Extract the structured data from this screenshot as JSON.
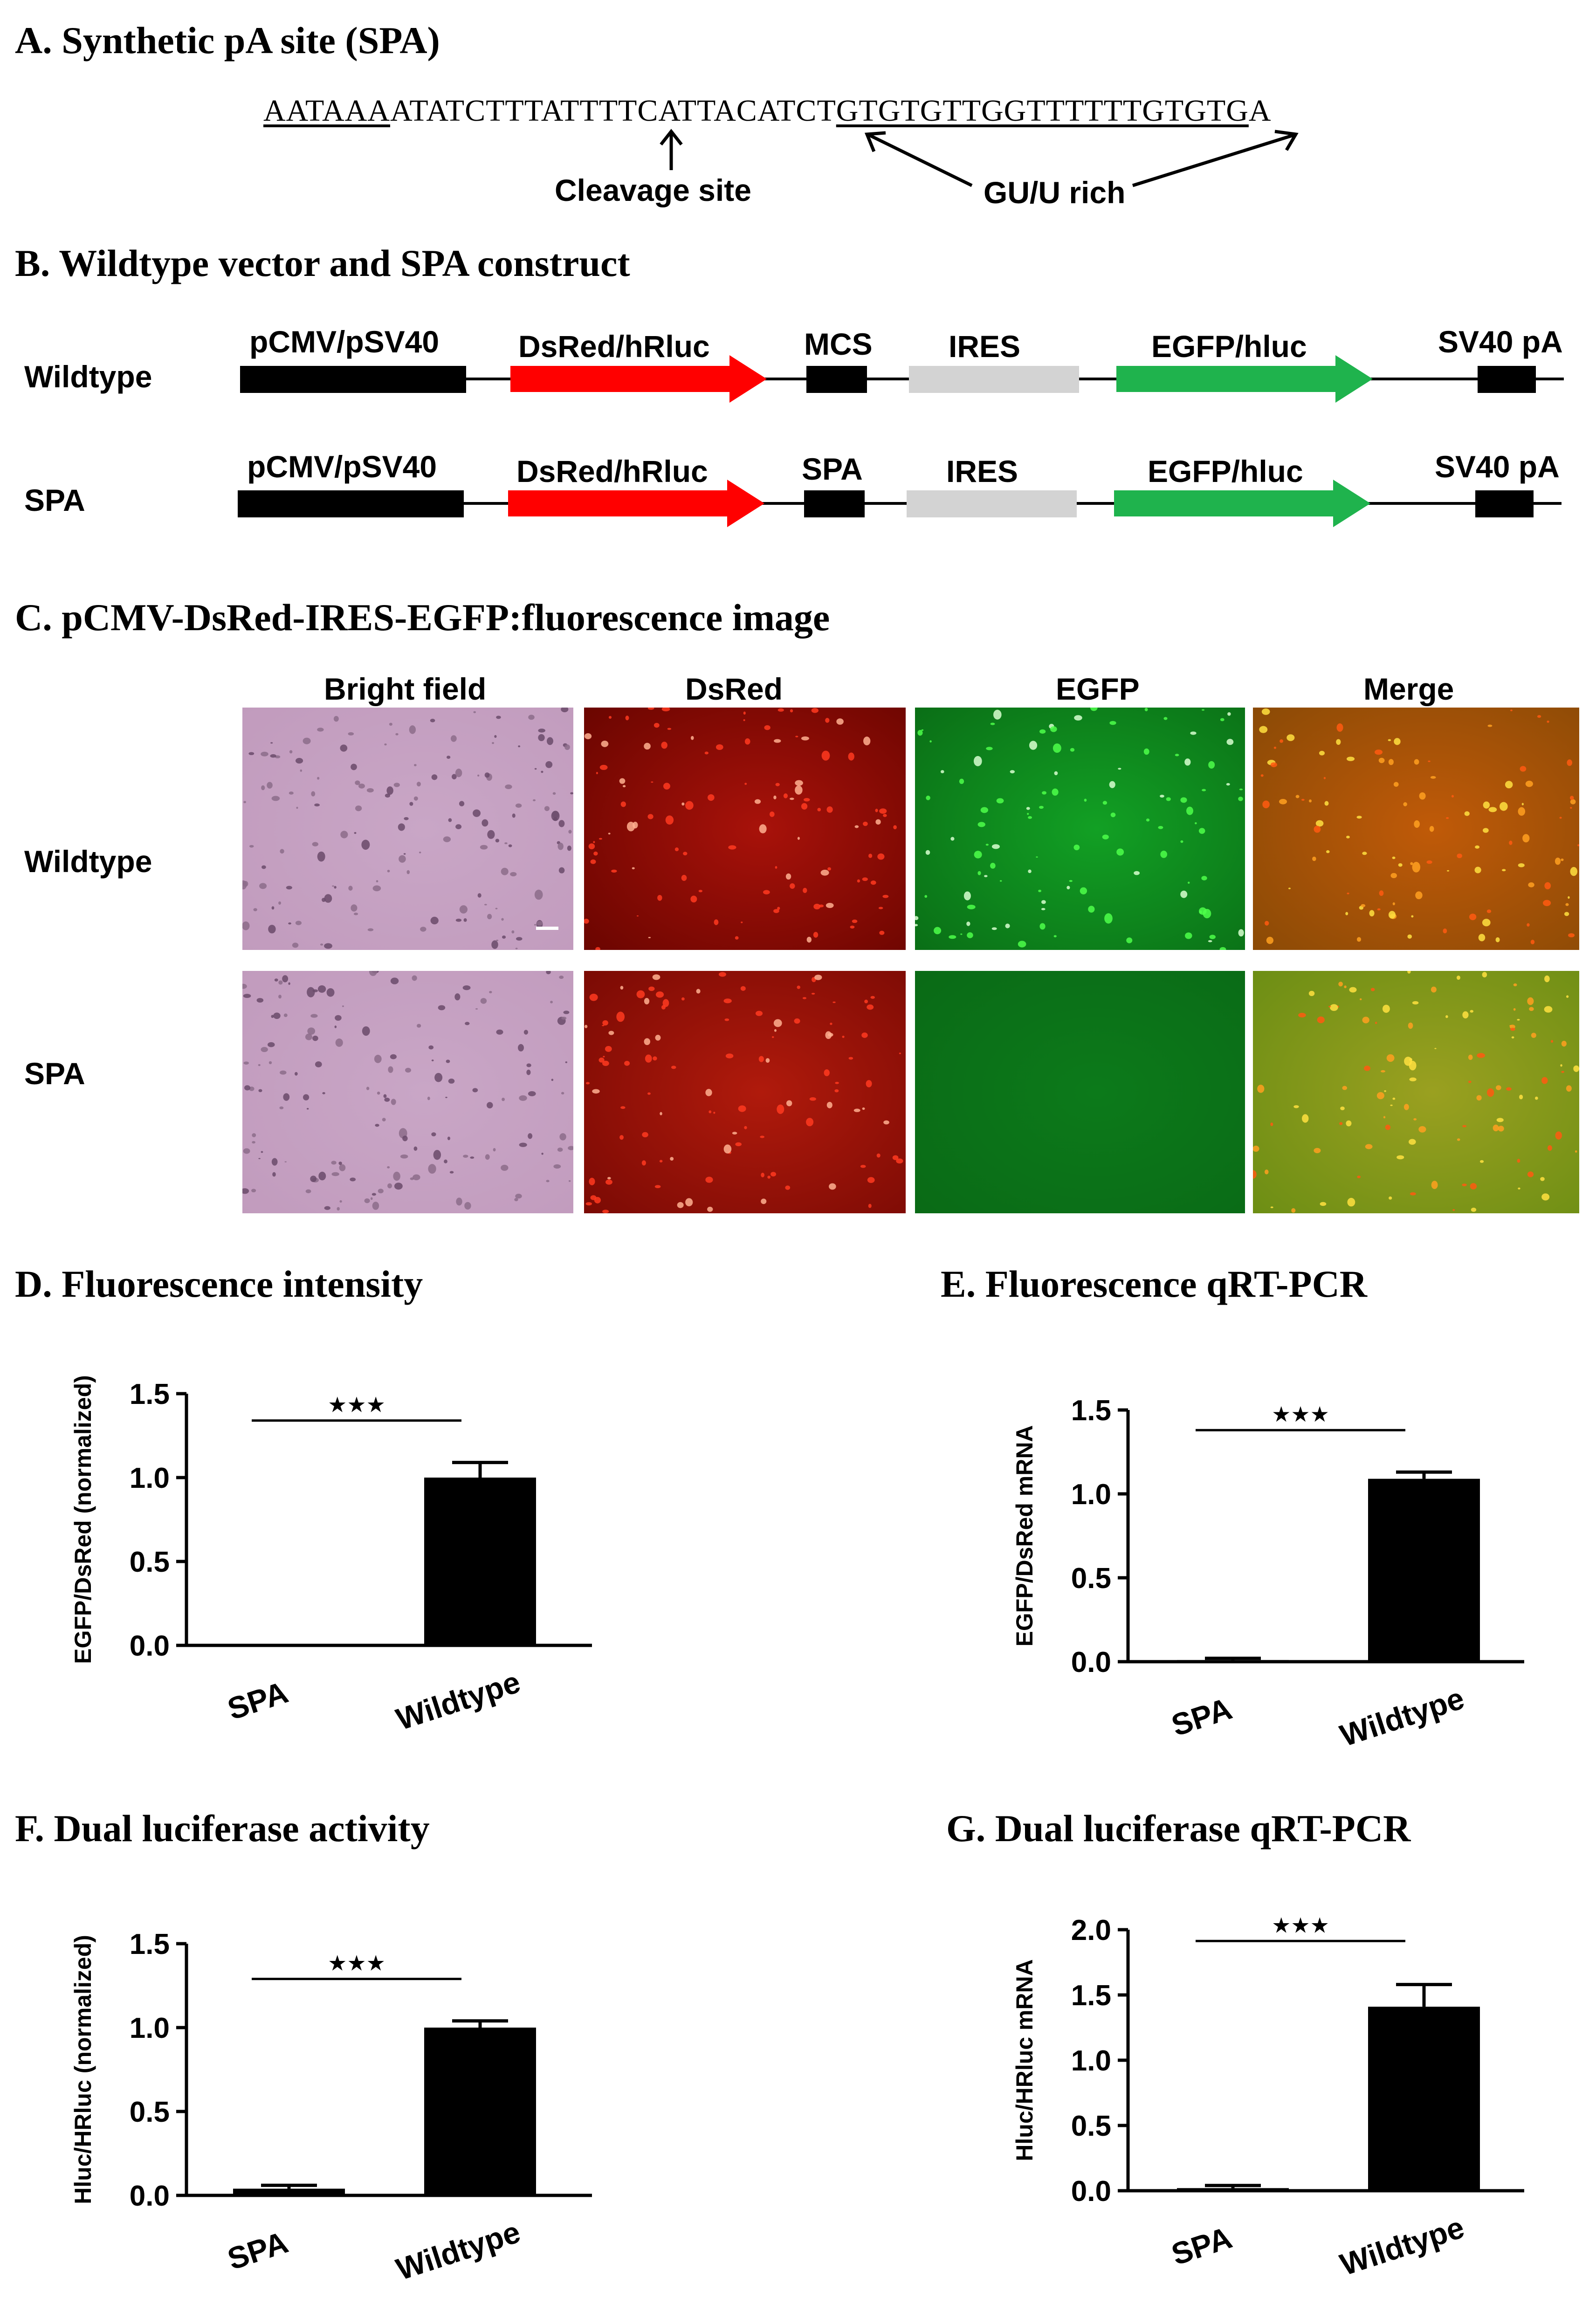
{
  "panel_a": {
    "heading": "A. Synthetic pA site (SPA)",
    "seq_part1": "AATAAA",
    "seq_part2": "ATATCTTTATTTTCATTACATCT",
    "seq_part3": "GTGTGTTGGTTTTTTGTGTG",
    "seq_part4": "A",
    "cleavage_label": "Cleavage site",
    "gu_label": "GU/U rich"
  },
  "panel_b": {
    "heading": "B. Wildtype vector and SPA construct",
    "rows": [
      {
        "name": "Wildtype",
        "promoter": "pCMV/pSV40",
        "reporter1": "DsRed/hRluc",
        "site": "MCS",
        "ires": "IRES",
        "reporter2": "EGFP/hluc",
        "pa": "SV40 pA"
      },
      {
        "name": "SPA",
        "promoter": "pCMV/pSV40",
        "reporter1": "DsRed/hRluc",
        "site": "SPA",
        "ires": "IRES",
        "reporter2": "EGFP/hluc",
        "pa": "SV40 pA"
      }
    ],
    "colors": {
      "promoter": "#000000",
      "reporter1": "#ff0000",
      "ires": "#d3d3d3",
      "reporter2": "#1fb34d"
    }
  },
  "panel_c": {
    "heading": "C. pCMV-DsRed-IRES-EGFP:fluorescence image",
    "columns": [
      "Bright field",
      "DsRed",
      "EGFP",
      "Merge"
    ],
    "rows": [
      "Wildtype",
      "SPA"
    ]
  },
  "chart_data": [
    {
      "panel": "D",
      "heading": "D. Fluorescence intensity",
      "type": "bar",
      "ylabel": "EGFP/DsRed (normalized)",
      "categories": [
        "SPA",
        "Wildtype"
      ],
      "values": [
        0.0,
        1.0
      ],
      "errors": [
        0.0,
        0.09
      ],
      "ylim": [
        0,
        1.5
      ],
      "yticks": [
        "0.0",
        "0.5",
        "1.0",
        "1.5"
      ],
      "significance": "★★★"
    },
    {
      "panel": "E",
      "heading": "E. Fluorescence qRT-PCR",
      "type": "bar",
      "ylabel": "EGFP/DsRed mRNA",
      "categories": [
        "SPA",
        "Wildtype"
      ],
      "values": [
        0.01,
        1.09
      ],
      "errors": [
        0.01,
        0.04
      ],
      "ylim": [
        0,
        1.5
      ],
      "yticks": [
        "0.0",
        "0.5",
        "1.0",
        "1.5"
      ],
      "significance": "★★★"
    },
    {
      "panel": "F",
      "heading": "F. Dual luciferase activity",
      "type": "bar",
      "ylabel": "Hluc/HRluc (normalized)",
      "categories": [
        "SPA",
        "Wildtype"
      ],
      "values": [
        0.04,
        1.0
      ],
      "errors": [
        0.02,
        0.04
      ],
      "ylim": [
        0,
        1.5
      ],
      "yticks": [
        "0.0",
        "0.5",
        "1.0",
        "1.5"
      ],
      "significance": "★★★"
    },
    {
      "panel": "G",
      "heading": "G. Dual luciferase qRT-PCR",
      "type": "bar",
      "ylabel": "Hluc/HRluc mRNA",
      "categories": [
        "SPA",
        "Wildtype"
      ],
      "values": [
        0.02,
        1.41
      ],
      "errors": [
        0.02,
        0.17
      ],
      "ylim": [
        0,
        2.0
      ],
      "yticks": [
        "0.0",
        "0.5",
        "1.0",
        "1.5",
        "2.0"
      ],
      "significance": "★★★"
    }
  ]
}
